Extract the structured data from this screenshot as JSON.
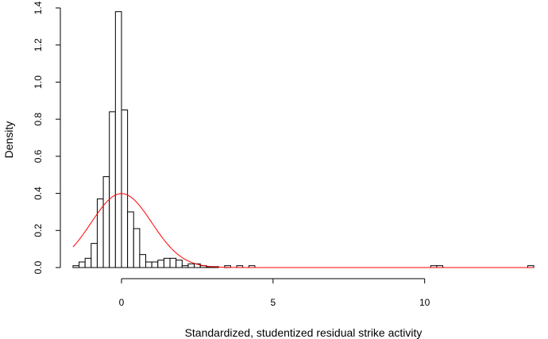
{
  "chart_data": {
    "type": "bar",
    "subtype": "histogram-with-density-curve",
    "xlabel": "Standardized, studentized residual strike activity",
    "ylabel": "Density",
    "xlim": [
      -1.65,
      13.65
    ],
    "ylim": [
      0,
      1.4
    ],
    "x_ticks": [
      0,
      5,
      10
    ],
    "y_ticks": [
      0.0,
      0.2,
      0.4,
      0.6,
      0.8,
      1.0,
      1.2,
      1.4
    ],
    "grid": false,
    "legend": "none",
    "bin_width": 0.2,
    "bins": [
      {
        "x0": -1.6,
        "x1": -1.4,
        "density": 0.01
      },
      {
        "x0": -1.4,
        "x1": -1.2,
        "density": 0.03
      },
      {
        "x0": -1.2,
        "x1": -1.0,
        "density": 0.05
      },
      {
        "x0": -1.0,
        "x1": -0.8,
        "density": 0.13
      },
      {
        "x0": -0.8,
        "x1": -0.6,
        "density": 0.37
      },
      {
        "x0": -0.6,
        "x1": -0.4,
        "density": 0.49
      },
      {
        "x0": -0.4,
        "x1": -0.2,
        "density": 0.84
      },
      {
        "x0": -0.2,
        "x1": 0.0,
        "density": 1.38
      },
      {
        "x0": 0.0,
        "x1": 0.2,
        "density": 0.85
      },
      {
        "x0": 0.2,
        "x1": 0.4,
        "density": 0.3
      },
      {
        "x0": 0.4,
        "x1": 0.6,
        "density": 0.21
      },
      {
        "x0": 0.6,
        "x1": 0.8,
        "density": 0.07
      },
      {
        "x0": 0.8,
        "x1": 1.0,
        "density": 0.03
      },
      {
        "x0": 1.0,
        "x1": 1.2,
        "density": 0.03
      },
      {
        "x0": 1.2,
        "x1": 1.4,
        "density": 0.04
      },
      {
        "x0": 1.4,
        "x1": 1.6,
        "density": 0.05
      },
      {
        "x0": 1.6,
        "x1": 1.8,
        "density": 0.05
      },
      {
        "x0": 1.8,
        "x1": 2.0,
        "density": 0.04
      },
      {
        "x0": 2.0,
        "x1": 2.2,
        "density": 0.01
      },
      {
        "x0": 2.2,
        "x1": 2.4,
        "density": 0.02
      },
      {
        "x0": 2.4,
        "x1": 2.6,
        "density": 0.02
      },
      {
        "x0": 2.6,
        "x1": 2.8,
        "density": 0.01
      },
      {
        "x0": 2.8,
        "x1": 3.0,
        "density": 0.005
      },
      {
        "x0": 3.0,
        "x1": 3.2,
        "density": 0.005
      },
      {
        "x0": 3.4,
        "x1": 3.6,
        "density": 0.01
      },
      {
        "x0": 3.8,
        "x1": 4.0,
        "density": 0.01
      },
      {
        "x0": 4.2,
        "x1": 4.4,
        "density": 0.01
      },
      {
        "x0": 10.2,
        "x1": 10.4,
        "density": 0.01
      },
      {
        "x0": 10.4,
        "x1": 10.6,
        "density": 0.01
      },
      {
        "x0": 13.4,
        "x1": 13.6,
        "density": 0.01
      }
    ],
    "density_curve": {
      "distribution": "normal",
      "mean": 0,
      "sd": 1,
      "x_range": [
        -1.6,
        13.6
      ],
      "color": "#ff0000"
    },
    "colors": {
      "bar_fill": "#ffffff",
      "bar_stroke": "#000000",
      "axis": "#000000",
      "curve": "#ff0000"
    }
  }
}
